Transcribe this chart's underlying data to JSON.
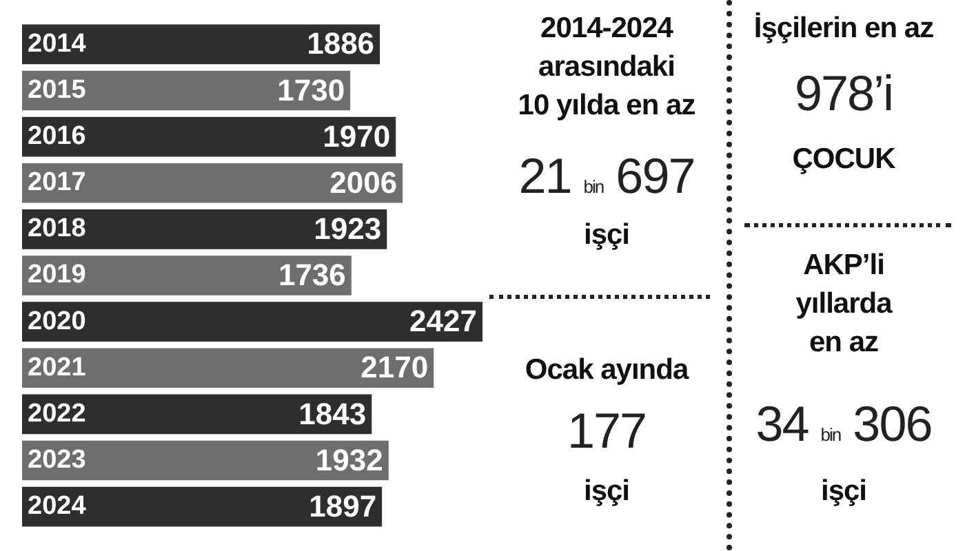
{
  "chart_data": {
    "type": "bar",
    "orientation": "horizontal",
    "categories": [
      "2014",
      "2015",
      "2016",
      "2017",
      "2018",
      "2019",
      "2020",
      "2021",
      "2022",
      "2023",
      "2024"
    ],
    "values": [
      1886,
      1730,
      1970,
      2006,
      1923,
      1736,
      2427,
      2170,
      1843,
      1932,
      1897
    ],
    "colors": [
      "#2e2e2e",
      "#6e6e6e",
      "#2e2e2e",
      "#6e6e6e",
      "#2e2e2e",
      "#6e6e6e",
      "#2e2e2e",
      "#6e6e6e",
      "#2e2e2e",
      "#6e6e6e",
      "#2e2e2e"
    ],
    "xlim": [
      0,
      2427
    ],
    "tick_labels": "y",
    "data_labels": true,
    "annotations": [
      "2014-2024",
      "arasındaki",
      "10 yılda en az",
      "21 bin 697",
      "işçi",
      "Ocak ayında",
      "177",
      "işçi",
      "İşçilerin en az",
      "978’i",
      "ÇOCUK",
      "AKP’li",
      "yıllarda",
      "en az",
      "34 bin 306",
      "işçi"
    ]
  }
}
